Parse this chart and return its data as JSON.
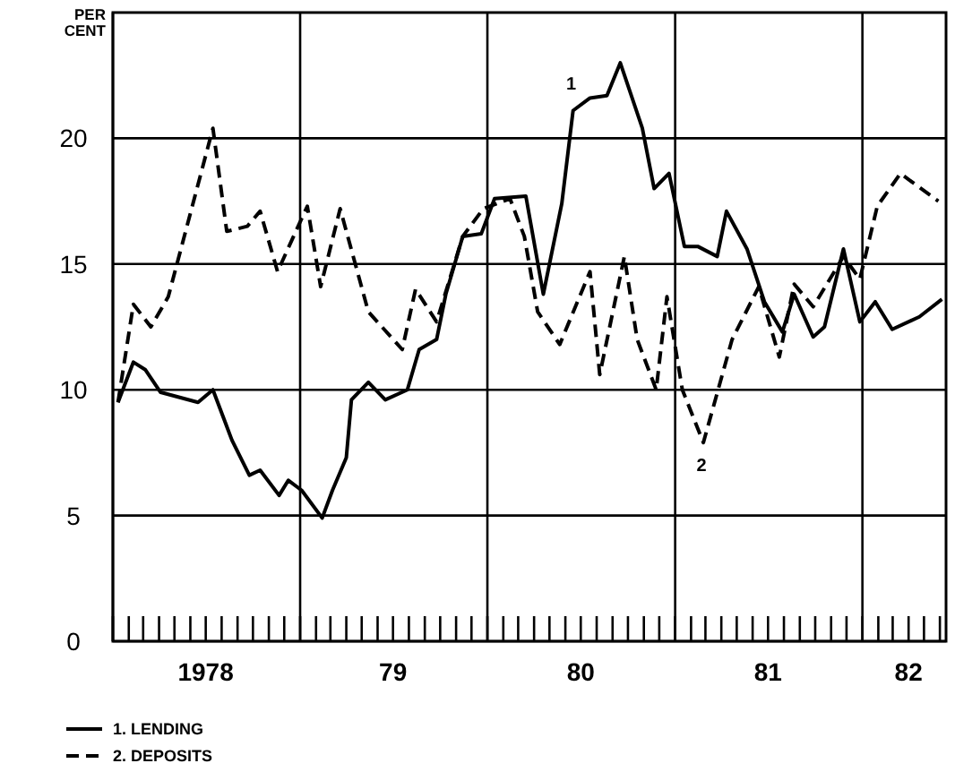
{
  "chart_data": {
    "type": "line",
    "ylabel": "PER CENT",
    "xlim": [
      "1978-01",
      "1982-06-13"
    ],
    "ylim": [
      0,
      25
    ],
    "yticks": [
      0,
      5,
      10,
      15,
      20
    ],
    "xticks": [
      {
        "value": "1978-01",
        "label": null
      },
      {
        "value": "1978-02",
        "label": null
      },
      {
        "value": "1978-03",
        "label": null
      },
      {
        "value": "1978-04",
        "label": null
      },
      {
        "value": "1978-05",
        "label": null
      },
      {
        "value": "1978-06",
        "label": null
      },
      {
        "value": "1978-07",
        "label": "1978"
      },
      {
        "value": "1978-08",
        "label": null
      },
      {
        "value": "1978-09",
        "label": null
      },
      {
        "value": "1978-10",
        "label": null
      },
      {
        "value": "1978-11",
        "label": null
      },
      {
        "value": "1978-12",
        "label": null
      },
      {
        "value": "1979-01",
        "label": null
      },
      {
        "value": "1979-02",
        "label": null
      },
      {
        "value": "1979-03",
        "label": null
      },
      {
        "value": "1979-04",
        "label": null
      },
      {
        "value": "1979-05",
        "label": null
      },
      {
        "value": "1979-06",
        "label": null
      },
      {
        "value": "1979-07",
        "label": "79"
      },
      {
        "value": "1979-08",
        "label": null
      },
      {
        "value": "1979-09",
        "label": null
      },
      {
        "value": "1979-10",
        "label": null
      },
      {
        "value": "1979-11",
        "label": null
      },
      {
        "value": "1979-12",
        "label": null
      },
      {
        "value": "1980-01",
        "label": null
      },
      {
        "value": "1980-02",
        "label": null
      },
      {
        "value": "1980-03",
        "label": null
      },
      {
        "value": "1980-04",
        "label": null
      },
      {
        "value": "1980-05",
        "label": null
      },
      {
        "value": "1980-06",
        "label": null
      },
      {
        "value": "1980-07",
        "label": "80"
      },
      {
        "value": "1980-08",
        "label": null
      },
      {
        "value": "1980-09",
        "label": null
      },
      {
        "value": "1980-10",
        "label": null
      },
      {
        "value": "1980-11",
        "label": null
      },
      {
        "value": "1980-12",
        "label": null
      },
      {
        "value": "1981-01",
        "label": null
      },
      {
        "value": "1981-02",
        "label": null
      },
      {
        "value": "1981-03",
        "label": null
      },
      {
        "value": "1981-04",
        "label": null
      },
      {
        "value": "1981-05",
        "label": null
      },
      {
        "value": "1981-06",
        "label": null
      },
      {
        "value": "1981-07",
        "label": "81"
      },
      {
        "value": "1981-08",
        "label": null
      },
      {
        "value": "1981-09",
        "label": null
      },
      {
        "value": "1981-10",
        "label": null
      },
      {
        "value": "1981-11",
        "label": null
      },
      {
        "value": "1981-12",
        "label": null
      },
      {
        "value": "1982-01",
        "label": null
      },
      {
        "value": "1982-02",
        "label": null
      },
      {
        "value": "1982-03",
        "label": null
      },
      {
        "value": "1982-04",
        "label": "82"
      },
      {
        "value": "1982-05",
        "label": null
      },
      {
        "value": "1982-06",
        "label": null
      }
    ],
    "grid": true,
    "legend": "bottom left",
    "series": [
      {
        "name": "1. LENDING",
        "color": "#000000",
        "line_style": "solid",
        "x": [
          "1978-01-11",
          "1978-02-10",
          "1978-03-05",
          "1978-04-04",
          "1978-06-16",
          "1978-07-15",
          "1978-08-21",
          "1978-09-24",
          "1978-10-15",
          "1978-11-21",
          "1978-12-09",
          "1979-01-04",
          "1979-02-13",
          "1979-03-05",
          "1979-04-01",
          "1979-04-11",
          "1979-05-14",
          "1979-06-16",
          "1979-07-29",
          "1979-08-21",
          "1979-09-24",
          "1979-10-12",
          "1979-11-14",
          "1979-12-20",
          "1980-01-15",
          "1980-03-16",
          "1980-04-19",
          "1980-05-25",
          "1980-06-16",
          "1980-07-19",
          "1980-08-21",
          "1980-09-16",
          "1980-10-29",
          "1980-11-21",
          "1980-12-20",
          "1981-01-19",
          "1981-02-14",
          "1981-03-24",
          "1981-04-11",
          "1981-05-21",
          "1981-06-24",
          "1981-07-29",
          "1981-08-21",
          "1981-09-27",
          "1981-10-19",
          "1981-11-25",
          "1981-12-27",
          "1982-01-26",
          "1982-02-28",
          "1982-04-22",
          "1982-06-05"
        ],
        "values": [
          9.5,
          11.1,
          10.8,
          9.9,
          9.5,
          10,
          8,
          6.6,
          6.8,
          5.8,
          6.4,
          6,
          4.9,
          6,
          7.3,
          9.6,
          10.3,
          9.6,
          10,
          11.6,
          12,
          13.8,
          16.1,
          16.2,
          17.6,
          17.7,
          13.8,
          17.4,
          21.1,
          21.6,
          21.7,
          23,
          20.4,
          18,
          18.6,
          15.7,
          15.7,
          15.3,
          17.1,
          15.6,
          13.5,
          12.3,
          13.8,
          12.1,
          12.5,
          15.6,
          12.7,
          13.5,
          12.4,
          12.9,
          13.6
        ]
      },
      {
        "name": "2. DEPOSITS",
        "color": "#000000",
        "line_style": "dashed",
        "x": [
          "1978-01-11",
          "1978-02-10",
          "1978-03-16",
          "1978-04-19",
          "1978-07-15",
          "1978-08-11",
          "1978-09-20",
          "1978-10-15",
          "1978-11-18",
          "1979-01-15",
          "1979-02-10",
          "1979-03-20",
          "1979-05-14",
          "1979-07-19",
          "1979-08-14",
          "1979-09-24",
          "1979-11-14",
          "1979-12-24",
          "1980-02-14",
          "1980-03-13",
          "1980-04-08",
          "1980-05-21",
          "1980-07-19",
          "1980-08-07",
          "1980-09-24",
          "1980-10-19",
          "1980-11-25",
          "1980-12-16",
          "1981-01-15",
          "1981-02-25",
          "1981-04-22",
          "1981-06-13",
          "1981-07-23",
          "1981-08-21",
          "1981-09-27",
          "1981-11-25",
          "1981-12-27",
          "1982-01-30",
          "1982-03-16",
          "1982-05-29"
        ],
        "values": [
          9.5,
          13.4,
          12.5,
          13.7,
          20.4,
          16.3,
          16.5,
          17.1,
          14.7,
          17.3,
          14.1,
          17.2,
          13.1,
          11.6,
          14,
          12.7,
          16.1,
          17.2,
          17.6,
          16.1,
          13.1,
          11.8,
          14.7,
          10.6,
          15.3,
          12,
          10,
          13.7,
          10,
          7.9,
          12,
          14.1,
          11.3,
          14.2,
          13.3,
          15.3,
          14.4,
          17.3,
          18.6,
          17.5
        ]
      }
    ],
    "annotations": [
      {
        "text": "1",
        "x": "1980-06-16",
        "y": 21.1
      },
      {
        "text": "2",
        "x": "1981-02-25",
        "y": 7.9
      }
    ]
  }
}
